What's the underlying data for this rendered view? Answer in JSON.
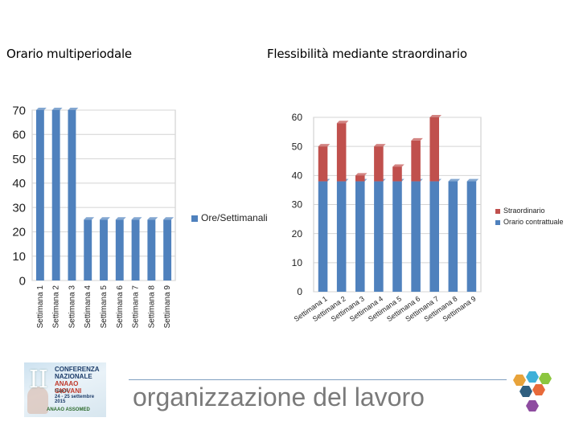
{
  "titles": {
    "left": "Orario multiperiodale",
    "right": "Flessibilità mediante straordinario"
  },
  "chart_data": [
    {
      "type": "bar",
      "categories": [
        "Settimana 1",
        "Settimana 2",
        "Settimana 3",
        "Settimana 4",
        "Settimana 5",
        "Settimana 6",
        "Settimana 7",
        "Settimana 8",
        "Settimana 9"
      ],
      "series": [
        {
          "name": "Ore/Settimanali",
          "values": [
            70,
            70,
            70,
            25,
            25,
            25,
            25,
            25,
            25
          ],
          "color": "#4f81bd"
        }
      ],
      "ylim": [
        0,
        70
      ],
      "yticks": [
        0,
        10,
        20,
        30,
        40,
        50,
        60,
        70
      ],
      "grid": true,
      "legend_position": "right"
    },
    {
      "type": "bar",
      "stacked": true,
      "categories": [
        "Settimana 1",
        "Settimana 2",
        "Settimana 3",
        "Settimana 4",
        "Settimana 5",
        "Settimana 6",
        "Settimana 7",
        "Settimana 8",
        "Settimana 9"
      ],
      "series": [
        {
          "name": "Orario contrattuale",
          "values": [
            38,
            38,
            38,
            38,
            38,
            38,
            38,
            38,
            38
          ],
          "color": "#4f81bd"
        },
        {
          "name": "Straordinario",
          "values": [
            12,
            20,
            2,
            12,
            5,
            14,
            22,
            0,
            0
          ],
          "color": "#c0504d"
        }
      ],
      "ylim": [
        0,
        60
      ],
      "yticks": [
        0,
        10,
        20,
        30,
        40,
        50,
        60
      ],
      "grid": true,
      "legend_position": "right"
    }
  ],
  "footer": {
    "text": "organizzazione del lavoro"
  },
  "logo": {
    "roman": "II",
    "line1": "CONFERENZA",
    "line2": "NAZIONALE",
    "line3": "ANAAO GIOVANI",
    "city": "Napoli",
    "dates": "24 - 25 settembre 2015",
    "brand": "ANAAO ASSOMED"
  }
}
